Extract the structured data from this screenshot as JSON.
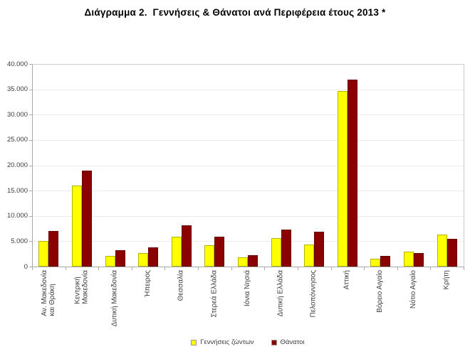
{
  "title": "Διάγραμμα 2.  Γεννήσεις & Θάνατοι ανά Περιφέρεια έτους 2013 *",
  "chart_data": {
    "type": "bar",
    "categories": [
      "Αν. Μακεδονία\nκαι Θράκη",
      "Κεντρική\nΜακεδονία",
      "Δυτική Μακεδονία",
      "Ήπειρος",
      "Θεσσαλία",
      "Στερεά Ελλάδα",
      "Ιόνια Νησιά",
      "Δυτική Ελλάδα",
      "Πελοπόννησος",
      "Αττική",
      "Βόρειο Αιγαίο",
      "Νότιο Αιγαίο",
      "Κρήτη"
    ],
    "series": [
      {
        "name": "Γεννήσεις ζώντων",
        "color": "#ffff00",
        "border_color": "#b3b300",
        "values": [
          5000,
          16000,
          2100,
          2700,
          5900,
          4200,
          1800,
          5600,
          4400,
          34700,
          1600,
          3000,
          6300
        ]
      },
      {
        "name": "Θάνατοι",
        "color": "#8b0000",
        "border_color": "#640000",
        "values": [
          7000,
          18900,
          3200,
          3800,
          8100,
          5900,
          2200,
          7300,
          6900,
          36900,
          2100,
          2600,
          5500
        ]
      }
    ],
    "xlabel": "",
    "ylabel": "",
    "ylim": [
      0,
      40000
    ],
    "ytick_step": 5000,
    "ytick_labels": [
      "0",
      "5.000",
      "10.000",
      "15.000",
      "20.000",
      "25.000",
      "30.000",
      "35.000",
      "40.000"
    ],
    "grid": true,
    "legend_position": "bottom"
  }
}
